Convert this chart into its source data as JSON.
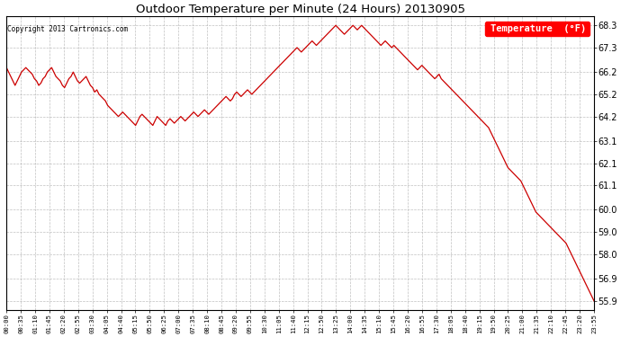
{
  "title": "Outdoor Temperature per Minute (24 Hours) 20130905",
  "copyright_text": "Copyright 2013 Cartronics.com",
  "legend_label": "Temperature  (°F)",
  "line_color": "#cc0000",
  "background_color": "#ffffff",
  "grid_color": "#b0b0b0",
  "ylim": [
    55.5,
    68.7
  ],
  "yticks": [
    55.9,
    56.9,
    58.0,
    59.0,
    60.0,
    61.1,
    62.1,
    63.1,
    64.2,
    65.2,
    66.2,
    67.3,
    68.3
  ],
  "x_tick_labels": [
    "00:00",
    "00:35",
    "01:10",
    "01:45",
    "02:20",
    "02:55",
    "03:30",
    "04:05",
    "04:40",
    "05:15",
    "05:50",
    "06:25",
    "07:00",
    "07:35",
    "08:10",
    "08:45",
    "09:20",
    "09:55",
    "10:30",
    "11:05",
    "11:40",
    "12:15",
    "12:50",
    "13:25",
    "14:00",
    "14:35",
    "15:10",
    "15:45",
    "16:20",
    "16:55",
    "17:30",
    "18:05",
    "18:40",
    "19:15",
    "19:50",
    "20:25",
    "21:00",
    "21:35",
    "22:10",
    "22:45",
    "23:20",
    "23:55"
  ],
  "temp_data": [
    66.4,
    66.2,
    66.0,
    65.8,
    65.6,
    65.8,
    66.0,
    66.2,
    66.3,
    66.4,
    66.3,
    66.2,
    66.1,
    65.9,
    65.8,
    65.6,
    65.7,
    65.9,
    66.0,
    66.2,
    66.3,
    66.4,
    66.2,
    66.0,
    65.9,
    65.8,
    65.6,
    65.5,
    65.7,
    65.9,
    66.0,
    66.2,
    66.0,
    65.8,
    65.7,
    65.8,
    65.9,
    66.0,
    65.8,
    65.6,
    65.5,
    65.3,
    65.4,
    65.2,
    65.1,
    65.0,
    64.9,
    64.7,
    64.6,
    64.5,
    64.4,
    64.3,
    64.2,
    64.3,
    64.4,
    64.3,
    64.2,
    64.1,
    64.0,
    63.9,
    63.8,
    64.0,
    64.2,
    64.3,
    64.2,
    64.1,
    64.0,
    63.9,
    63.8,
    64.0,
    64.2,
    64.1,
    64.0,
    63.9,
    63.8,
    64.0,
    64.1,
    64.0,
    63.9,
    64.0,
    64.1,
    64.2,
    64.1,
    64.0,
    64.1,
    64.2,
    64.3,
    64.4,
    64.3,
    64.2,
    64.3,
    64.4,
    64.5,
    64.4,
    64.3,
    64.4,
    64.5,
    64.6,
    64.7,
    64.8,
    64.9,
    65.0,
    65.1,
    65.0,
    64.9,
    65.0,
    65.2,
    65.3,
    65.2,
    65.1,
    65.2,
    65.3,
    65.4,
    65.3,
    65.2,
    65.3,
    65.4,
    65.5,
    65.6,
    65.7,
    65.8,
    65.9,
    66.0,
    66.1,
    66.2,
    66.3,
    66.4,
    66.5,
    66.6,
    66.7,
    66.8,
    66.9,
    67.0,
    67.1,
    67.2,
    67.3,
    67.2,
    67.1,
    67.2,
    67.3,
    67.4,
    67.5,
    67.6,
    67.5,
    67.4,
    67.5,
    67.6,
    67.7,
    67.8,
    67.9,
    68.0,
    68.1,
    68.2,
    68.3,
    68.2,
    68.1,
    68.0,
    67.9,
    68.0,
    68.1,
    68.2,
    68.3,
    68.2,
    68.1,
    68.2,
    68.3,
    68.2,
    68.1,
    68.0,
    67.9,
    67.8,
    67.7,
    67.6,
    67.5,
    67.4,
    67.5,
    67.6,
    67.5,
    67.4,
    67.3,
    67.4,
    67.3,
    67.2,
    67.1,
    67.0,
    66.9,
    66.8,
    66.7,
    66.6,
    66.5,
    66.4,
    66.3,
    66.4,
    66.5,
    66.4,
    66.3,
    66.2,
    66.1,
    66.0,
    65.9,
    66.0,
    66.1,
    65.9,
    65.8,
    65.7,
    65.6,
    65.5,
    65.4,
    65.3,
    65.2,
    65.1,
    65.0,
    64.9,
    64.8,
    64.7,
    64.6,
    64.5,
    64.4,
    64.3,
    64.2,
    64.1,
    64.0,
    63.9,
    63.8,
    63.7,
    63.5,
    63.3,
    63.1,
    62.9,
    62.7,
    62.5,
    62.3,
    62.1,
    61.9,
    61.8,
    61.7,
    61.6,
    61.5,
    61.4,
    61.3,
    61.1,
    60.9,
    60.7,
    60.5,
    60.3,
    60.1,
    59.9,
    59.8,
    59.7,
    59.6,
    59.5,
    59.4,
    59.3,
    59.2,
    59.1,
    59.0,
    58.9,
    58.8,
    58.7,
    58.6,
    58.5,
    58.3,
    58.1,
    57.9,
    57.7,
    57.5,
    57.3,
    57.1,
    56.9,
    56.7,
    56.5,
    56.3,
    56.1,
    55.9
  ]
}
